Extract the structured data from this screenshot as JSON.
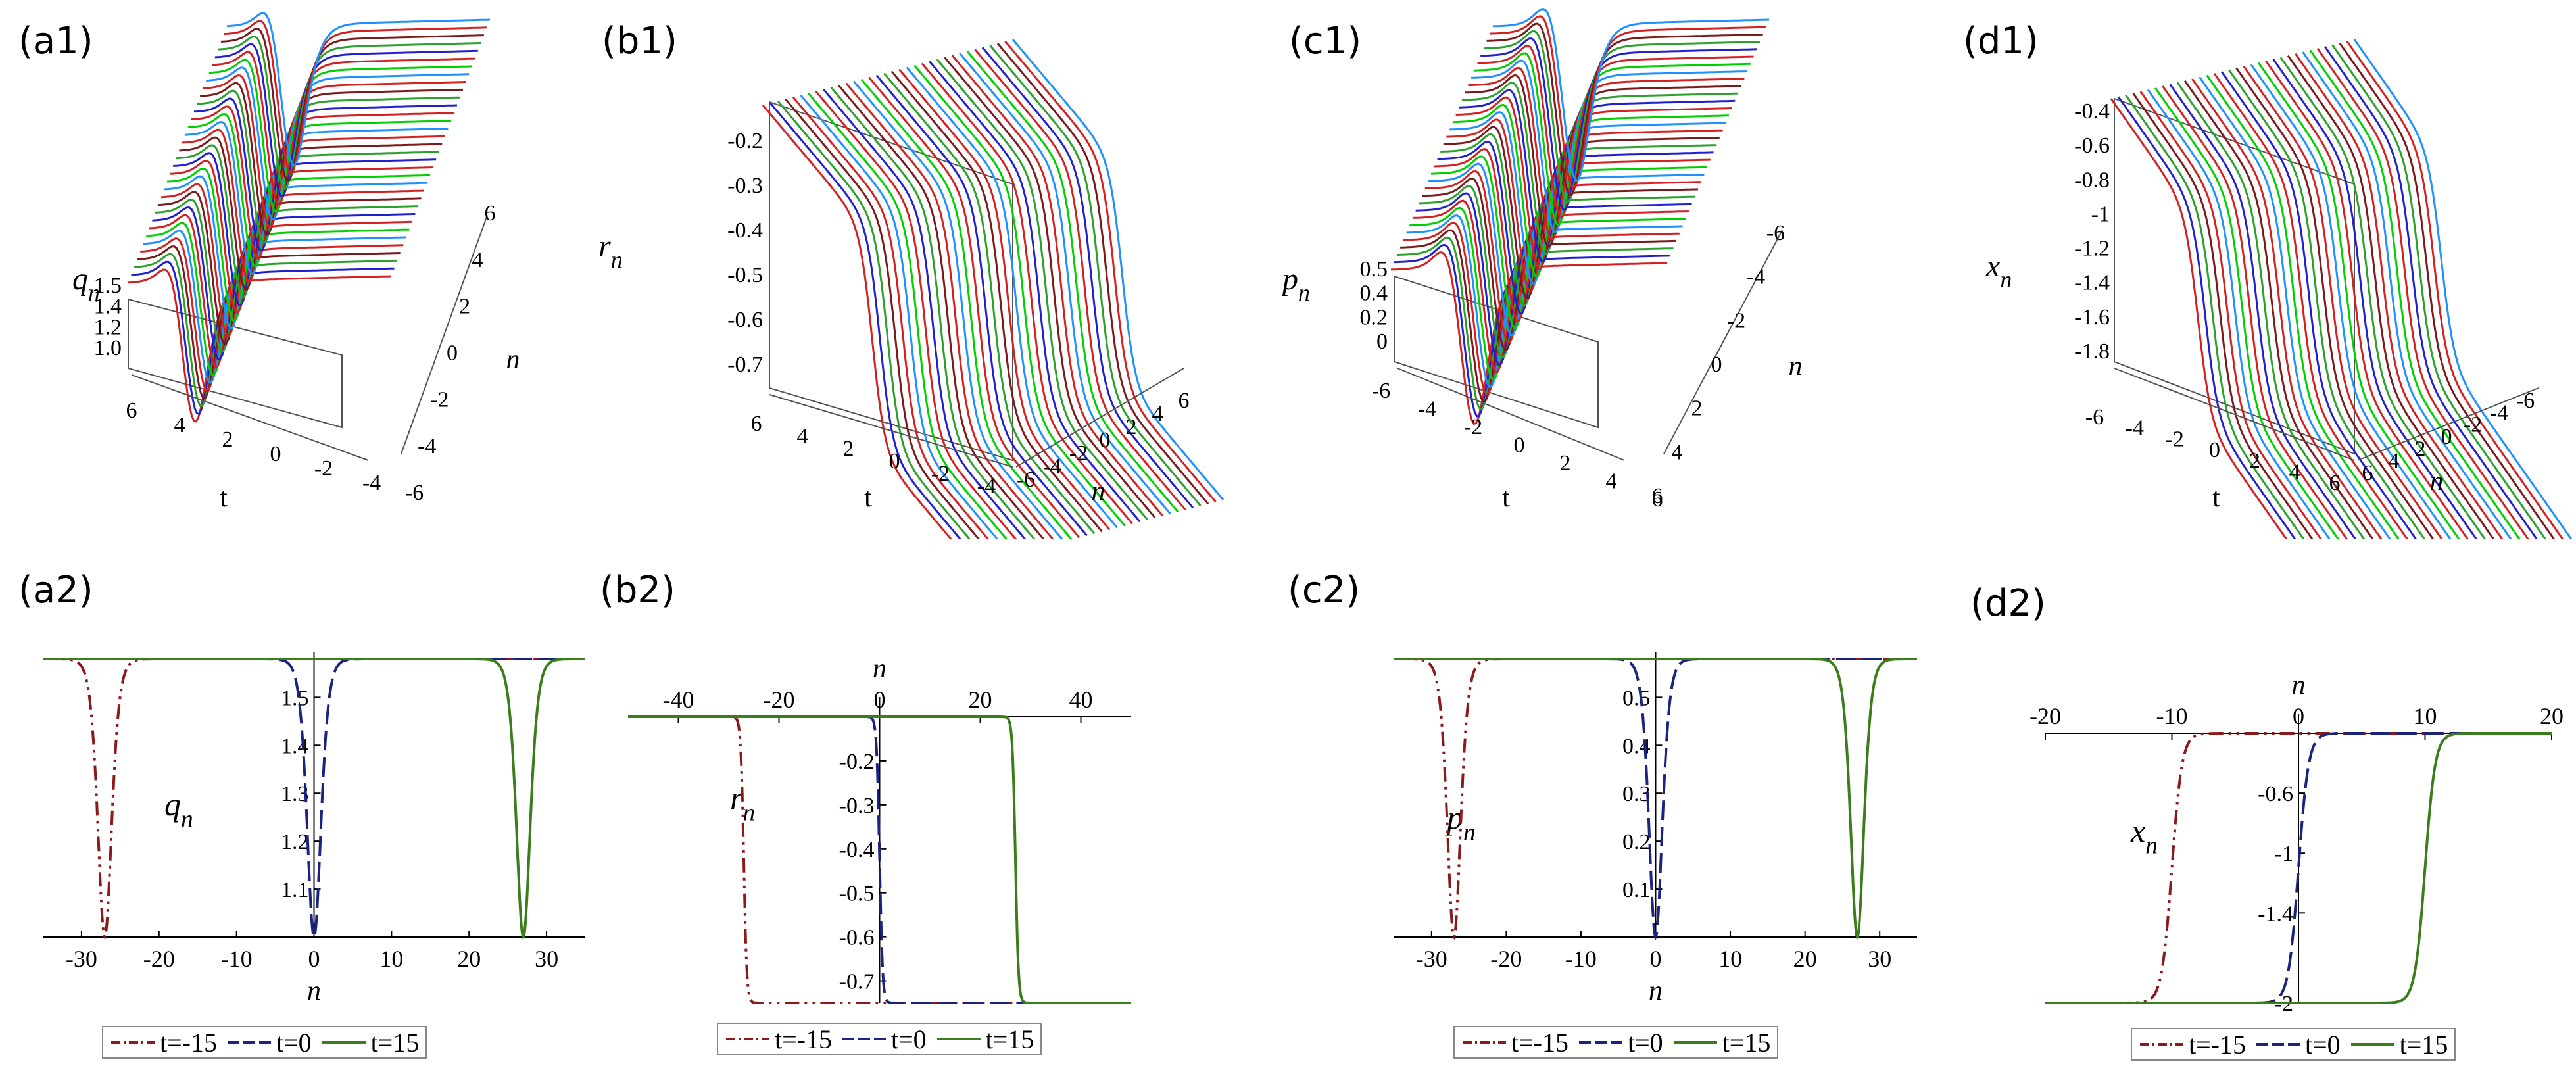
{
  "labels": {
    "a1": "(a1)",
    "b1": "(b1)",
    "c1": "(c1)",
    "d1": "(d1)",
    "a2": "(a2)",
    "b2": "(b2)",
    "c2": "(c2)",
    "d2": "(d2)"
  },
  "surfaces": {
    "a1": {
      "zsym": "q",
      "tsym": "t",
      "nsym": "n",
      "zticks": [
        "1.5",
        "1.4",
        "1.2",
        "1.0"
      ],
      "tticks": [
        "6",
        "4",
        "2",
        "0",
        "-2",
        "-4"
      ],
      "nticks": [
        "6",
        "4",
        "2",
        "0",
        "-2",
        "-4",
        "-6"
      ]
    },
    "b1": {
      "zsym": "r",
      "tsym": "t",
      "nsym": "n",
      "zticks": [
        "-0.2",
        "-0.3",
        "-0.4",
        "-0.5",
        "-0.6",
        "-0.7"
      ],
      "tticks": [
        "6",
        "4",
        "2",
        "0",
        "-2",
        "-4"
      ],
      "nticks": [
        "-6",
        "-4",
        "-2",
        "0",
        "2",
        "4",
        "6"
      ]
    },
    "c1": {
      "zsym": "p",
      "tsym": "t",
      "nsym": "n",
      "zticks": [
        "0.5",
        "0.4",
        "0.2",
        "0"
      ],
      "tticks": [
        "-6",
        "-4",
        "-2",
        "0",
        "2",
        "4",
        "6"
      ],
      "nticks": [
        "-6",
        "-4",
        "-2",
        "0",
        "2",
        "4",
        "6"
      ]
    },
    "d1": {
      "zsym": "x",
      "tsym": "t",
      "nsym": "n",
      "zticks": [
        "-0.4",
        "-0.6",
        "-0.8",
        "-1",
        "-1.2",
        "-1.4",
        "-1.6",
        "-1.8"
      ],
      "tticks": [
        "-6",
        "-4",
        "-2",
        "0",
        "2",
        "4",
        "6"
      ],
      "nticks": [
        "6",
        "4",
        "2",
        "0",
        "-2",
        "-4",
        "-6"
      ]
    }
  },
  "legend": {
    "items": [
      "t=-15",
      "t=0",
      "t=15"
    ],
    "colors": [
      "#8b1a1a",
      "#1a237e",
      "#3a7d1a"
    ]
  },
  "chart_data": [
    {
      "type": "line",
      "panel": "a2",
      "xlabel": "n",
      "ylabel": "q_n",
      "xlim": [
        -35,
        35
      ],
      "ylim": [
        1.0,
        1.58
      ],
      "xticks": [
        -30,
        -20,
        -10,
        0,
        10,
        20,
        30
      ],
      "yticks": [
        1.1,
        1.2,
        1.3,
        1.4,
        1.5
      ],
      "ytick_labels": [
        "1.1",
        "1.2",
        "1.3",
        "1.4",
        "1.5"
      ],
      "profile": "dip",
      "base": 1.58,
      "depth": 0.58,
      "width": 1.2,
      "series": [
        {
          "name": "t=-15",
          "center": -27,
          "style": "dashdot"
        },
        {
          "name": "t=0",
          "center": 0,
          "style": "dash"
        },
        {
          "name": "t=15",
          "center": 27,
          "style": "solid"
        }
      ]
    },
    {
      "type": "line",
      "panel": "b2",
      "xlabel": "n",
      "ylabel": "r_n",
      "xlim": [
        -50,
        50
      ],
      "ylim": [
        -0.75,
        -0.1
      ],
      "xticks": [
        -40,
        -20,
        0,
        20,
        40
      ],
      "yticks": [
        -0.2,
        -0.3,
        -0.4,
        -0.5,
        -0.6,
        -0.7
      ],
      "ytick_labels": [
        "-0.2",
        "-0.3",
        "-0.4",
        "-0.5",
        "-0.6",
        "-0.7"
      ],
      "profile": "kink_down",
      "high": -0.1,
      "low": -0.75,
      "width": 0.6,
      "series": [
        {
          "name": "t=-15",
          "center": -27,
          "style": "dashdot"
        },
        {
          "name": "t=0",
          "center": 0,
          "style": "dash"
        },
        {
          "name": "t=15",
          "center": 27,
          "style": "solid"
        }
      ]
    },
    {
      "type": "line",
      "panel": "c2",
      "xlabel": "n",
      "ylabel": "p_n",
      "xlim": [
        -35,
        35
      ],
      "ylim": [
        0,
        0.58
      ],
      "xticks": [
        -30,
        -20,
        -10,
        0,
        10,
        20,
        30
      ],
      "yticks": [
        0.1,
        0.2,
        0.3,
        0.4,
        0.5
      ],
      "ytick_labels": [
        "0.1",
        "0.2",
        "0.3",
        "0.4",
        "0.5"
      ],
      "profile": "dip",
      "base": 0.58,
      "depth": 0.58,
      "width": 1.2,
      "series": [
        {
          "name": "t=-15",
          "center": -27,
          "style": "dashdot"
        },
        {
          "name": "t=0",
          "center": 0,
          "style": "dash"
        },
        {
          "name": "t=15",
          "center": 27,
          "style": "solid"
        }
      ]
    },
    {
      "type": "line",
      "panel": "d2",
      "xlabel": "n",
      "ylabel": "x_n",
      "xlim": [
        -20,
        20
      ],
      "ylim": [
        -2,
        -0.2
      ],
      "xticks": [
        -20,
        -10,
        0,
        10,
        20
      ],
      "yticks": [
        -0.6,
        -1,
        -1.4,
        -2
      ],
      "ytick_labels": [
        "-0.6",
        "-1",
        "-1.4",
        "-2"
      ],
      "profile": "kink_up",
      "high": -0.2,
      "low": -2,
      "width": 0.8,
      "series": [
        {
          "name": "t=-15",
          "center": -10,
          "style": "dashdot"
        },
        {
          "name": "t=0",
          "center": 0,
          "style": "dash"
        },
        {
          "name": "t=15",
          "center": 10,
          "style": "solid"
        }
      ]
    }
  ]
}
